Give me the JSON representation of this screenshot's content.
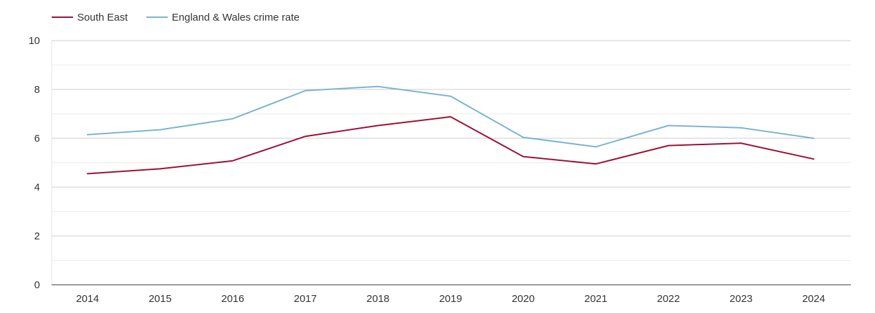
{
  "chart_data": {
    "type": "line",
    "title": "",
    "xlabel": "",
    "ylabel": "",
    "categories": [
      "2014",
      "2015",
      "2016",
      "2017",
      "2018",
      "2019",
      "2020",
      "2021",
      "2022",
      "2023",
      "2024"
    ],
    "ylim": [
      0,
      10
    ],
    "yticks": [
      0,
      2,
      4,
      6,
      8,
      10
    ],
    "ytick_labels": [
      "0",
      "2",
      "4",
      "6",
      "8",
      "10"
    ],
    "grid": true,
    "legend_position": "top-left",
    "series": [
      {
        "name": "South East",
        "color": "#9b0e35",
        "values": [
          4.55,
          4.75,
          5.08,
          6.08,
          6.52,
          6.88,
          5.25,
          4.95,
          5.7,
          5.8,
          5.15
        ]
      },
      {
        "name": "England & Wales crime rate",
        "color": "#7ab3d3",
        "values": [
          6.15,
          6.35,
          6.8,
          7.95,
          8.12,
          7.72,
          6.04,
          5.65,
          6.52,
          6.43,
          6.0
        ]
      }
    ]
  }
}
